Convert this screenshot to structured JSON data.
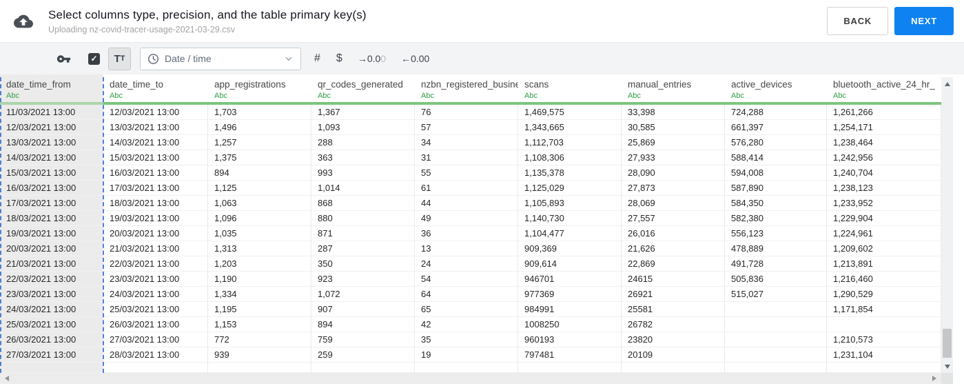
{
  "topbar": {
    "title": "Select columns type, precision, and the table primary key(s)",
    "subtitle": "Uploading nz-covid-tracer-usage-2021-03-29.csv",
    "back_label": "BACK",
    "next_label": "NEXT"
  },
  "toolbar": {
    "checkbox_checked": true,
    "checkbox_check": "✓",
    "text_type": {
      "t1": "T",
      "t2": "T"
    },
    "type_dropdown_value": "Date / time",
    "hash_label": "#",
    "dollar_label": "$",
    "inc_decimal": {
      "dark": "→0.0",
      "muted": "0"
    },
    "dec_decimal_label": "←0.00"
  },
  "table": {
    "selected_column_index": 0,
    "columns": [
      {
        "name": "date_time_from",
        "type_label": "Abc"
      },
      {
        "name": "date_time_to",
        "type_label": "Abc"
      },
      {
        "name": "app_registrations",
        "type_label": "Abc"
      },
      {
        "name": "qr_codes_generated",
        "type_label": "Abc"
      },
      {
        "name": "nzbn_registered_busine",
        "type_label": "Abc"
      },
      {
        "name": "scans",
        "type_label": "Abc"
      },
      {
        "name": "manual_entries",
        "type_label": "Abc"
      },
      {
        "name": "active_devices",
        "type_label": "Abc"
      },
      {
        "name": "bluetooth_active_24_hr_",
        "type_label": "Abc"
      }
    ],
    "rows": [
      [
        "11/03/2021 13:00",
        "12/03/2021 13:00",
        "1,703",
        "1,367",
        "76",
        "1,469,575",
        "33,398",
        "724,288",
        "1,261,266"
      ],
      [
        "12/03/2021 13:00",
        "13/03/2021 13:00",
        "1,496",
        "1,093",
        "57",
        "1,343,665",
        "30,585",
        "661,397",
        "1,254,171"
      ],
      [
        "13/03/2021 13:00",
        "14/03/2021 13:00",
        "1,257",
        "288",
        "34",
        "1,112,703",
        "25,869",
        "576,280",
        "1,238,464"
      ],
      [
        "14/03/2021 13:00",
        "15/03/2021 13:00",
        "1,375",
        "363",
        "31",
        "1,108,306",
        "27,933",
        "588,414",
        "1,242,956"
      ],
      [
        "15/03/2021 13:00",
        "16/03/2021 13:00",
        "894",
        "993",
        "55",
        "1,135,378",
        "28,090",
        "594,008",
        "1,240,704"
      ],
      [
        "16/03/2021 13:00",
        "17/03/2021 13:00",
        "1,125",
        "1,014",
        "61",
        "1,125,029",
        "27,873",
        "587,890",
        "1,238,123"
      ],
      [
        "17/03/2021 13:00",
        "18/03/2021 13:00",
        "1,063",
        "868",
        "44",
        "1,105,893",
        "28,069",
        "584,350",
        "1,233,952"
      ],
      [
        "18/03/2021 13:00",
        "19/03/2021 13:00",
        "1,096",
        "880",
        "49",
        "1,140,730",
        "27,557",
        "582,380",
        "1,229,904"
      ],
      [
        "19/03/2021 13:00",
        "20/03/2021 13:00",
        "1,035",
        "871",
        "36",
        "1,104,477",
        "26,016",
        "556,123",
        "1,224,961"
      ],
      [
        "20/03/2021 13:00",
        "21/03/2021 13:00",
        "1,313",
        "287",
        "13",
        "909,369",
        "21,626",
        "478,889",
        "1,209,602"
      ],
      [
        "21/03/2021 13:00",
        "22/03/2021 13:00",
        "1,203",
        "350",
        "24",
        "909,614",
        "22,869",
        "491,728",
        "1,213,891"
      ],
      [
        "22/03/2021 13:00",
        "23/03/2021 13:00",
        "1,190",
        "923",
        "54",
        "946701",
        "24615",
        "505,836",
        "1,216,460"
      ],
      [
        "23/03/2021 13:00",
        "24/03/2021 13:00",
        "1,334",
        "1,072",
        "64",
        "977369",
        "26921",
        "515,027",
        "1,290,529"
      ],
      [
        "24/03/2021 13:00",
        "25/03/2021 13:00",
        "1,195",
        "907",
        "65",
        "984991",
        "25581",
        "",
        "1,171,854"
      ],
      [
        "25/03/2021 13:00",
        "26/03/2021 13:00",
        "1,153",
        "894",
        "42",
        "1008250",
        "26782",
        "",
        ""
      ],
      [
        "26/03/2021 13:00",
        "27/03/2021 13:00",
        "772",
        "759",
        "35",
        "960193",
        "23820",
        "",
        "1,210,573"
      ],
      [
        "27/03/2021 13:00",
        "28/03/2021 13:00",
        "939",
        "259",
        "19",
        "797481",
        "20109",
        "",
        "1,231,104"
      ]
    ]
  },
  "colors": {
    "accent_blue": "#0e82f1",
    "type_green": "#2f9e44",
    "header_bar_green": "#7cc67e",
    "selection_dash_blue": "#4d7fd6",
    "selected_column_bg": "#ebebeb",
    "toolbar_bg": "#f3f4f5"
  }
}
